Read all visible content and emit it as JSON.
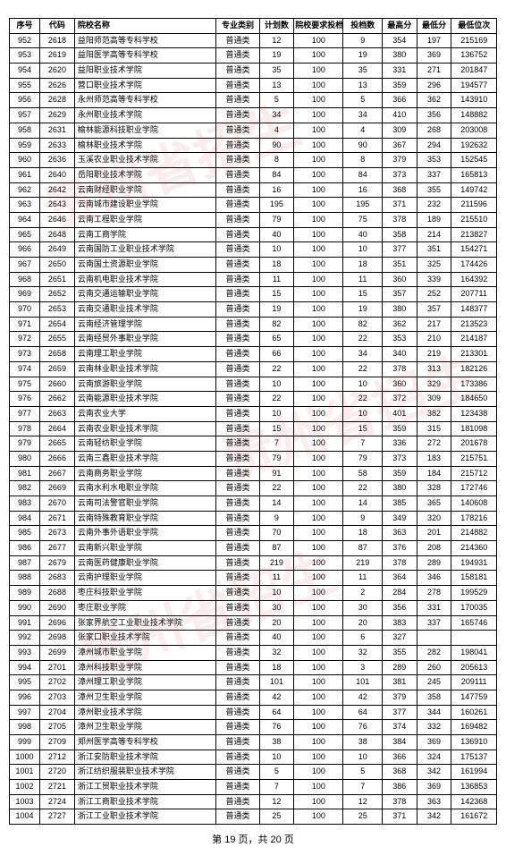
{
  "columns": [
    "序号",
    "代码",
    "院校名称",
    "专业类别",
    "计划数",
    "院校要求投档比例(%)",
    "投档数",
    "最高分",
    "最低分",
    "最低位次"
  ],
  "rows": [
    [
      952,
      2618,
      "益阳师范高等专科学校",
      "普通类",
      12,
      100,
      9,
      354,
      197,
      215169
    ],
    [
      953,
      2619,
      "益阳医学高等专科学校",
      "普通类",
      19,
      100,
      19,
      380,
      369,
      136752
    ],
    [
      954,
      2620,
      "益阳职业技术学院",
      "普通类",
      35,
      100,
      35,
      331,
      271,
      201847
    ],
    [
      955,
      2626,
      "营口职业技术学院",
      "普通类",
      13,
      100,
      13,
      359,
      296,
      194577
    ],
    [
      956,
      2628,
      "永州师范高等专科学校",
      "普通类",
      5,
      100,
      5,
      366,
      362,
      143910
    ],
    [
      957,
      2629,
      "永州职业技术学院",
      "普通类",
      34,
      100,
      34,
      410,
      356,
      148882
    ],
    [
      958,
      2631,
      "榆林能源科技职业学院",
      "普通类",
      4,
      100,
      4,
      309,
      268,
      203008
    ],
    [
      959,
      2633,
      "榆林职业技术学院",
      "普通类",
      90,
      100,
      90,
      367,
      294,
      192632
    ],
    [
      960,
      2636,
      "玉溪农业职业技术学院",
      "普通类",
      8,
      100,
      8,
      379,
      353,
      152545
    ],
    [
      961,
      2640,
      "岳阳职业技术学院",
      "普通类",
      84,
      100,
      84,
      373,
      337,
      165813
    ],
    [
      962,
      2642,
      "云南财经职业学院",
      "普通类",
      16,
      100,
      16,
      368,
      355,
      149742
    ],
    [
      963,
      2643,
      "云南城市建设职业学院",
      "普通类",
      195,
      100,
      195,
      371,
      232,
      211596
    ],
    [
      964,
      2646,
      "云南工程职业学院",
      "普通类",
      79,
      100,
      75,
      378,
      189,
      215510
    ],
    [
      965,
      2648,
      "云南工商学院",
      "普通类",
      40,
      100,
      40,
      358,
      214,
      213827
    ],
    [
      966,
      2649,
      "云南国防工业职业技术学院",
      "普通类",
      10,
      100,
      10,
      377,
      351,
      154271
    ],
    [
      967,
      2650,
      "云南国土资源职业学院",
      "普通类",
      18,
      100,
      18,
      351,
      325,
      174426
    ],
    [
      968,
      2651,
      "云南机电职业技术学院",
      "普通类",
      11,
      100,
      11,
      360,
      339,
      164392
    ],
    [
      969,
      2652,
      "云南交通运输职业学院",
      "普通类",
      15,
      100,
      15,
      357,
      252,
      207711
    ],
    [
      970,
      2653,
      "云南交通职业技术学院",
      "普通类",
      19,
      100,
      19,
      380,
      357,
      148377
    ],
    [
      971,
      2654,
      "云南经济管理学院",
      "普通类",
      82,
      100,
      82,
      362,
      217,
      213523
    ],
    [
      972,
      2655,
      "云南经贸外事职业学院",
      "普通类",
      65,
      100,
      22,
      353,
      210,
      214187
    ],
    [
      973,
      2658,
      "云南理工职业学院",
      "普通类",
      66,
      100,
      34,
      340,
      219,
      213301
    ],
    [
      974,
      2659,
      "云南林业职业技术学院",
      "普通类",
      22,
      100,
      22,
      378,
      313,
      182126
    ],
    [
      975,
      2660,
      "云南旅游职业学院",
      "普通类",
      10,
      100,
      10,
      360,
      329,
      173386
    ],
    [
      976,
      2662,
      "云南能源职业技术学院",
      "普通类",
      22,
      100,
      22,
      372,
      309,
      184650
    ],
    [
      977,
      2663,
      "云南农业大学",
      "普通类",
      10,
      100,
      10,
      401,
      382,
      123438
    ],
    [
      978,
      2664,
      "云南农业职业技术学院",
      "普通类",
      15,
      100,
      15,
      359,
      315,
      181098
    ],
    [
      979,
      2665,
      "云南轻纺职业学院",
      "普通类",
      7,
      100,
      7,
      336,
      272,
      201678
    ],
    [
      980,
      2666,
      "云南三鑫职业技术学院",
      "普通类",
      79,
      100,
      79,
      373,
      183,
      215751
    ],
    [
      981,
      2667,
      "云南商务职业学院",
      "普通类",
      91,
      100,
      58,
      359,
      184,
      215712
    ],
    [
      982,
      2669,
      "云南水利水电职业学院",
      "普通类",
      22,
      100,
      22,
      380,
      328,
      172746
    ],
    [
      983,
      2670,
      "云南司法警官职业学院",
      "普通类",
      14,
      100,
      14,
      385,
      365,
      140608
    ],
    [
      984,
      2671,
      "云南特殊教育职业学院",
      "普通类",
      9,
      100,
      9,
      349,
      320,
      178216
    ],
    [
      985,
      2673,
      "云南外事外语职业学院",
      "普通类",
      70,
      100,
      18,
      363,
      201,
      214882
    ],
    [
      986,
      2677,
      "云南新兴职业学院",
      "普通类",
      87,
      100,
      87,
      376,
      208,
      214360
    ],
    [
      987,
      2679,
      "云南医药健康职业学院",
      "普通类",
      219,
      100,
      219,
      378,
      289,
      194931
    ],
    [
      988,
      2683,
      "云南护理职业学院",
      "普通类",
      11,
      100,
      11,
      364,
      346,
      158181
    ],
    [
      989,
      2688,
      "枣庄科技职业学院",
      "普通类",
      10,
      100,
      2,
      284,
      278,
      199529
    ],
    [
      990,
      2690,
      "枣庄职业学院",
      "普通类",
      30,
      100,
      30,
      356,
      331,
      170035
    ],
    [
      991,
      2696,
      "张家界航空工业职业技术学院",
      "普通类",
      20,
      100,
      20,
      383,
      337,
      165746
    ],
    [
      992,
      2698,
      "张家口职业技术学院",
      "普通类",
      40,
      100,
      6,
      327,
      "",
      ""
    ],
    [
      993,
      2699,
      "漳州城市职业学院",
      "普通类",
      32,
      100,
      32,
      355,
      282,
      198041
    ],
    [
      994,
      2701,
      "漳州科技职业学院",
      "普通类",
      18,
      100,
      3,
      289,
      260,
      205613
    ],
    [
      995,
      2702,
      "漳州理工职业学院",
      "普通类",
      101,
      100,
      101,
      381,
      245,
      209111
    ],
    [
      996,
      2703,
      "漳州卫生职业学院",
      "普通类",
      42,
      100,
      42,
      379,
      358,
      147759
    ],
    [
      997,
      2704,
      "漳州职业技术学院",
      "普通类",
      64,
      100,
      64,
      377,
      344,
      160261
    ],
    [
      998,
      2705,
      "漳州卫生职业学院",
      "普通类",
      76,
      100,
      76,
      374,
      332,
      169482
    ],
    [
      999,
      2709,
      "郑州医学高等专科学校",
      "普通类",
      38,
      100,
      38,
      384,
      369,
      136910
    ],
    [
      1000,
      2712,
      "浙江安防职业技术学院",
      "普通类",
      10,
      100,
      10,
      366,
      324,
      175137
    ],
    [
      1001,
      2720,
      "浙江纺织服装职业技术学院",
      "普通类",
      5,
      100,
      5,
      368,
      342,
      161994
    ],
    [
      1002,
      2721,
      "浙江工贸职业技术学院",
      "普通类",
      7,
      100,
      7,
      386,
      369,
      136853
    ],
    [
      1003,
      2724,
      "浙江工商职业技术学院",
      "普通类",
      12,
      100,
      12,
      378,
      363,
      142368
    ],
    [
      1004,
      2727,
      "浙江工业职业技术学院",
      "普通类",
      25,
      100,
      25,
      371,
      342,
      161672
    ]
  ],
  "footer": "第 19 页，共 20 页",
  "col_classes": [
    "col-seq",
    "col-code",
    "col-name",
    "col-type",
    "col-plan",
    "col-req",
    "col-cast",
    "col-max",
    "col-min",
    "col-rank"
  ]
}
